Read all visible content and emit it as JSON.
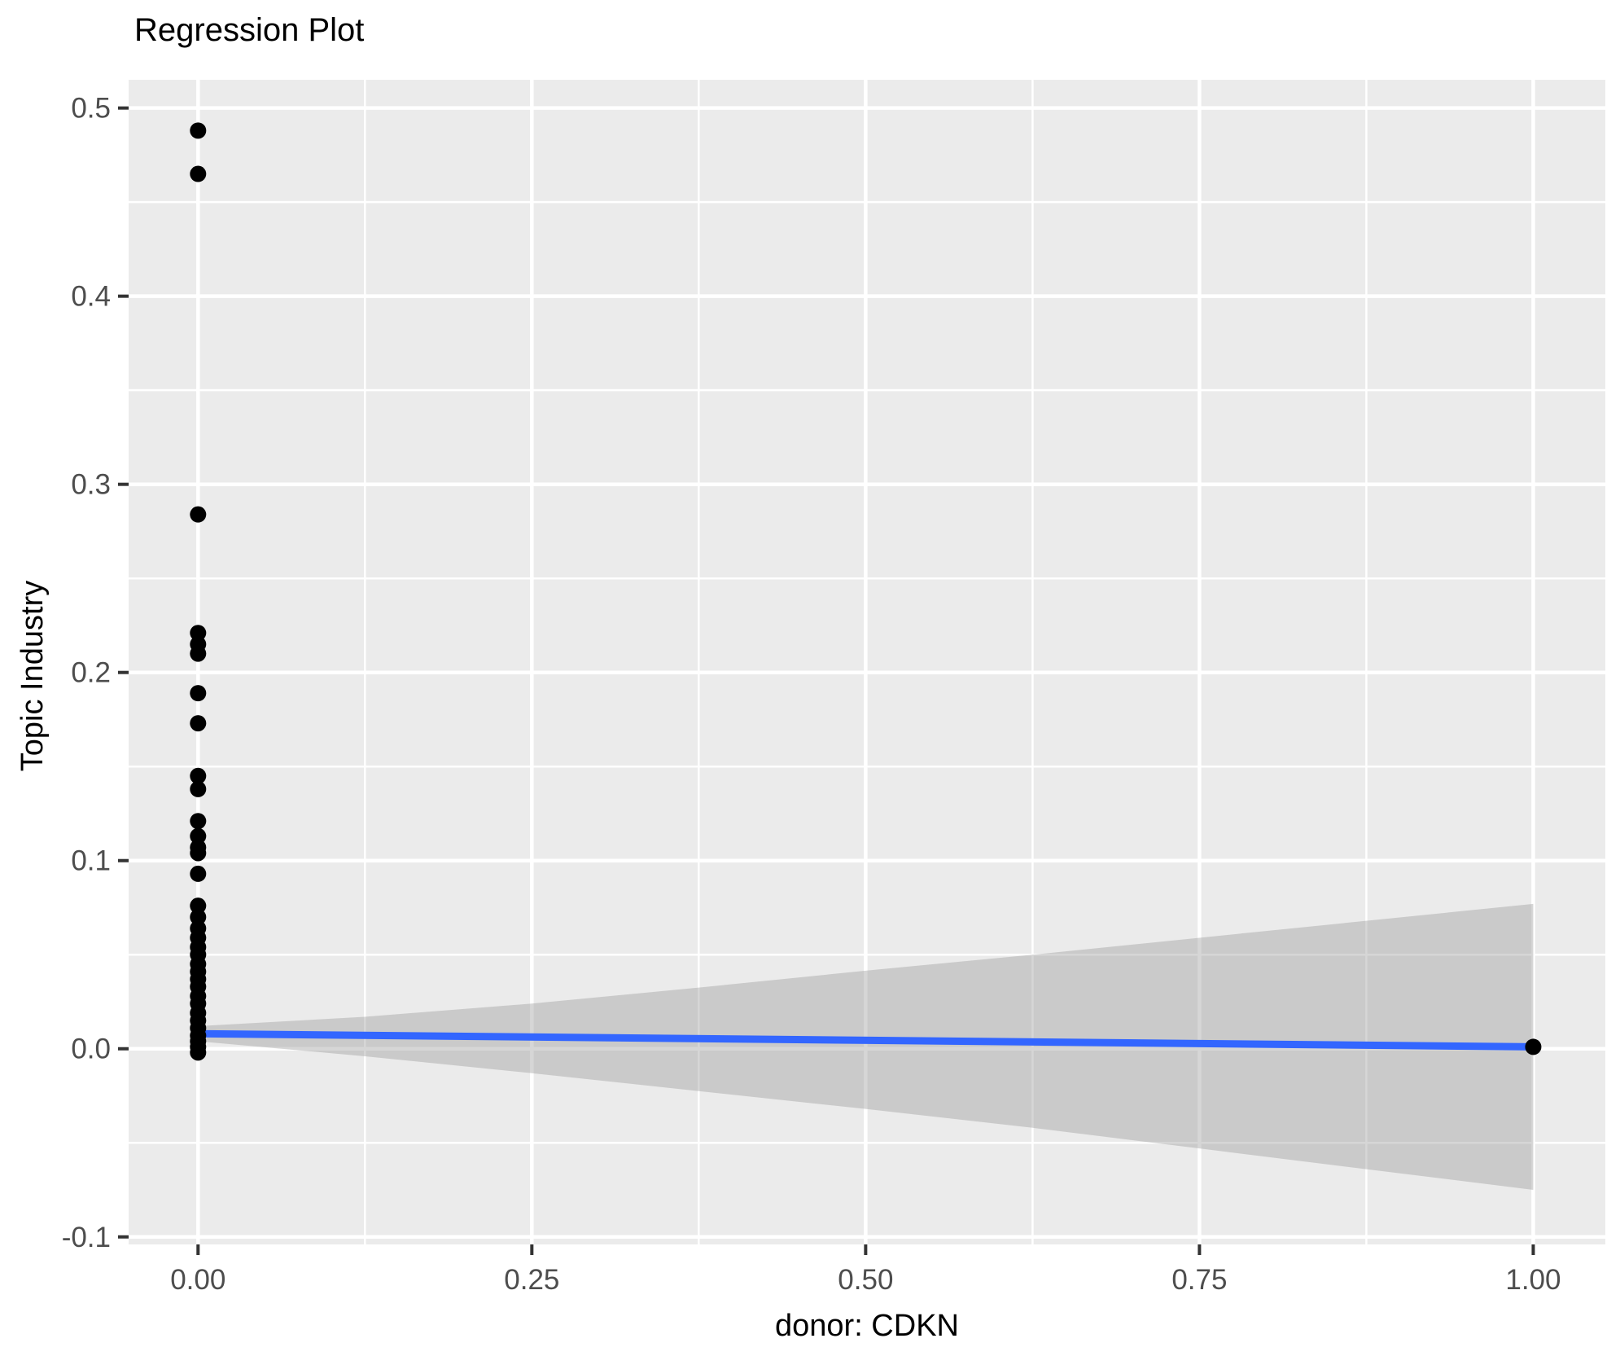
{
  "chart_data": {
    "type": "scatter",
    "title": "Regression Plot",
    "xlabel": "donor: CDKN",
    "ylabel": "Topic Industry",
    "xlim": [
      -0.052,
      1.054
    ],
    "ylim": [
      -0.104,
      0.515
    ],
    "grid": "on",
    "legend": "none",
    "x_ticks": [
      {
        "value": 0.0,
        "label": "0.00"
      },
      {
        "value": 0.25,
        "label": "0.25"
      },
      {
        "value": 0.5,
        "label": "0.50"
      },
      {
        "value": 0.75,
        "label": "0.75"
      },
      {
        "value": 1.0,
        "label": "1.00"
      }
    ],
    "y_ticks": [
      {
        "value": -0.1,
        "label": "-0.1"
      },
      {
        "value": 0.0,
        "label": "0.0"
      },
      {
        "value": 0.1,
        "label": "0.1"
      },
      {
        "value": 0.2,
        "label": "0.2"
      },
      {
        "value": 0.3,
        "label": "0.3"
      },
      {
        "value": 0.4,
        "label": "0.4"
      },
      {
        "value": 0.5,
        "label": "0.5"
      }
    ],
    "x_minor_gridlines": [
      0.125,
      0.375,
      0.625,
      0.875
    ],
    "y_minor_gridlines": [
      -0.05,
      0.05,
      0.15,
      0.25,
      0.35,
      0.45
    ],
    "points": [
      [
        0,
        0.488
      ],
      [
        0,
        0.465
      ],
      [
        0,
        0.284
      ],
      [
        0,
        0.221
      ],
      [
        0,
        0.215
      ],
      [
        0,
        0.21
      ],
      [
        0,
        0.189
      ],
      [
        0,
        0.173
      ],
      [
        0,
        0.145
      ],
      [
        0,
        0.138
      ],
      [
        0,
        0.121
      ],
      [
        0,
        0.113
      ],
      [
        0,
        0.107
      ],
      [
        0,
        0.104
      ],
      [
        0,
        0.093
      ],
      [
        0,
        0.076
      ],
      [
        0,
        0.07
      ],
      [
        0,
        0.064
      ],
      [
        0,
        0.059
      ],
      [
        0,
        0.054
      ],
      [
        0,
        0.05
      ],
      [
        0,
        0.045
      ],
      [
        0,
        0.041
      ],
      [
        0,
        0.037
      ],
      [
        0,
        0.033
      ],
      [
        0,
        0.028
      ],
      [
        0,
        0.024
      ],
      [
        0,
        0.019
      ],
      [
        0,
        0.015
      ],
      [
        0,
        0.011
      ],
      [
        0,
        0.007
      ],
      [
        0,
        0.004
      ],
      [
        0,
        0.001
      ],
      [
        0,
        -0.002
      ],
      [
        1,
        0.001
      ]
    ],
    "regression_line": {
      "x1": 0,
      "y1": 0.008,
      "x2": 1,
      "y2": 0.001
    },
    "confidence_band": [
      {
        "x": 0.0,
        "upper": 0.012,
        "lower": 0.004
      },
      {
        "x": 0.125,
        "upper": 0.017,
        "lower": -0.004
      },
      {
        "x": 0.25,
        "upper": 0.024,
        "lower": -0.013
      },
      {
        "x": 0.375,
        "upper": 0.0325,
        "lower": -0.0225
      },
      {
        "x": 0.5,
        "upper": 0.0415,
        "lower": -0.032
      },
      {
        "x": 0.625,
        "upper": 0.05,
        "lower": -0.042
      },
      {
        "x": 0.75,
        "upper": 0.059,
        "lower": -0.053
      },
      {
        "x": 0.875,
        "upper": 0.068,
        "lower": -0.064
      },
      {
        "x": 1.0,
        "upper": 0.077,
        "lower": -0.075
      }
    ],
    "colors": {
      "panel_background": "#EBEBEB",
      "gridline": "#FFFFFF",
      "point": "#000000",
      "regression_line": "#3366FF",
      "ribbon_fill": "#999999",
      "ribbon_opacity": 0.4,
      "tick_label": "#4D4D4D",
      "tick_mark": "#333333",
      "title_text": "#000000"
    }
  }
}
